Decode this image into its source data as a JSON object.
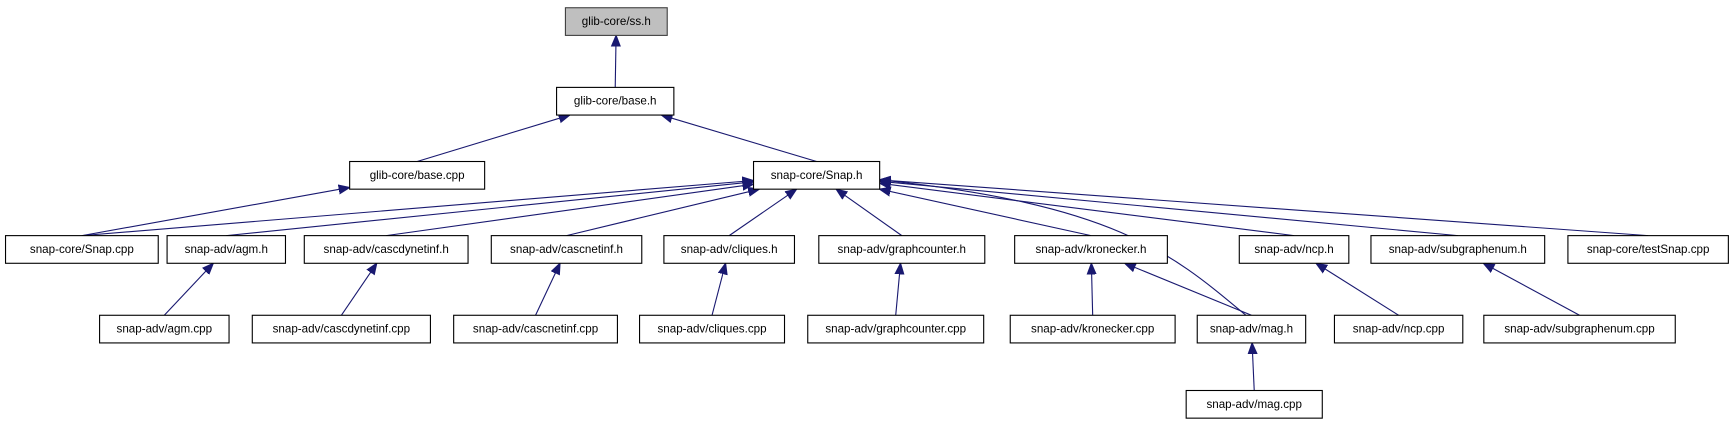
{
  "colors": {
    "edge": "#191970",
    "root_fill": "#bfbfbf",
    "node_fill": "#ffffff"
  },
  "nodes": [
    {
      "id": "ss",
      "label": "glib-core/ss.h",
      "root": true
    },
    {
      "id": "base_h",
      "label": "glib-core/base.h"
    },
    {
      "id": "base_cpp",
      "label": "glib-core/base.cpp"
    },
    {
      "id": "snap_h",
      "label": "snap-core/Snap.h"
    },
    {
      "id": "snap_cpp",
      "label": "snap-core/Snap.cpp"
    },
    {
      "id": "agm_h",
      "label": "snap-adv/agm.h"
    },
    {
      "id": "cascdyn_h",
      "label": "snap-adv/cascdynetinf.h"
    },
    {
      "id": "cascnet_h",
      "label": "snap-adv/cascnetinf.h"
    },
    {
      "id": "cliques_h",
      "label": "snap-adv/cliques.h"
    },
    {
      "id": "graphcounter_h",
      "label": "snap-adv/graphcounter.h"
    },
    {
      "id": "kronecker_h",
      "label": "snap-adv/kronecker.h"
    },
    {
      "id": "ncp_h",
      "label": "snap-adv/ncp.h"
    },
    {
      "id": "subgraphenum_h",
      "label": "snap-adv/subgraphenum.h"
    },
    {
      "id": "testsnap_cpp",
      "label": "snap-core/testSnap.cpp"
    },
    {
      "id": "agm_cpp",
      "label": "snap-adv/agm.cpp"
    },
    {
      "id": "cascdyn_cpp",
      "label": "snap-adv/cascdynetinf.cpp"
    },
    {
      "id": "cascnet_cpp",
      "label": "snap-adv/cascnetinf.cpp"
    },
    {
      "id": "cliques_cpp",
      "label": "snap-adv/cliques.cpp"
    },
    {
      "id": "graphcounter_cpp",
      "label": "snap-adv/graphcounter.cpp"
    },
    {
      "id": "kronecker_cpp",
      "label": "snap-adv/kronecker.cpp"
    },
    {
      "id": "mag_h",
      "label": "snap-adv/mag.h"
    },
    {
      "id": "ncp_cpp",
      "label": "snap-adv/ncp.cpp"
    },
    {
      "id": "subgraphenum_cpp",
      "label": "snap-adv/subgraphenum.cpp"
    },
    {
      "id": "mag_cpp",
      "label": "snap-adv/mag.cpp"
    }
  ],
  "edges": [
    {
      "from": "base_h",
      "to": "ss"
    },
    {
      "from": "base_cpp",
      "to": "base_h"
    },
    {
      "from": "snap_h",
      "to": "base_h"
    },
    {
      "from": "snap_cpp",
      "to": "base_cpp"
    },
    {
      "from": "snap_cpp",
      "to": "snap_h"
    },
    {
      "from": "agm_h",
      "to": "snap_h"
    },
    {
      "from": "cascdyn_h",
      "to": "snap_h"
    },
    {
      "from": "cascnet_h",
      "to": "snap_h"
    },
    {
      "from": "cliques_h",
      "to": "snap_h"
    },
    {
      "from": "graphcounter_h",
      "to": "snap_h"
    },
    {
      "from": "kronecker_h",
      "to": "snap_h"
    },
    {
      "from": "mag_h",
      "to": "snap_h"
    },
    {
      "from": "ncp_h",
      "to": "snap_h"
    },
    {
      "from": "subgraphenum_h",
      "to": "snap_h"
    },
    {
      "from": "testsnap_cpp",
      "to": "snap_h"
    },
    {
      "from": "agm_cpp",
      "to": "agm_h"
    },
    {
      "from": "cascdyn_cpp",
      "to": "cascdyn_h"
    },
    {
      "from": "cascnet_cpp",
      "to": "cascnet_h"
    },
    {
      "from": "cliques_cpp",
      "to": "cliques_h"
    },
    {
      "from": "graphcounter_cpp",
      "to": "graphcounter_h"
    },
    {
      "from": "kronecker_cpp",
      "to": "kronecker_h"
    },
    {
      "from": "mag_h",
      "to": "kronecker_h"
    },
    {
      "from": "mag_cpp",
      "to": "mag_h"
    },
    {
      "from": "ncp_cpp",
      "to": "ncp_h"
    },
    {
      "from": "subgraphenum_cpp",
      "to": "subgraphenum_h"
    }
  ]
}
